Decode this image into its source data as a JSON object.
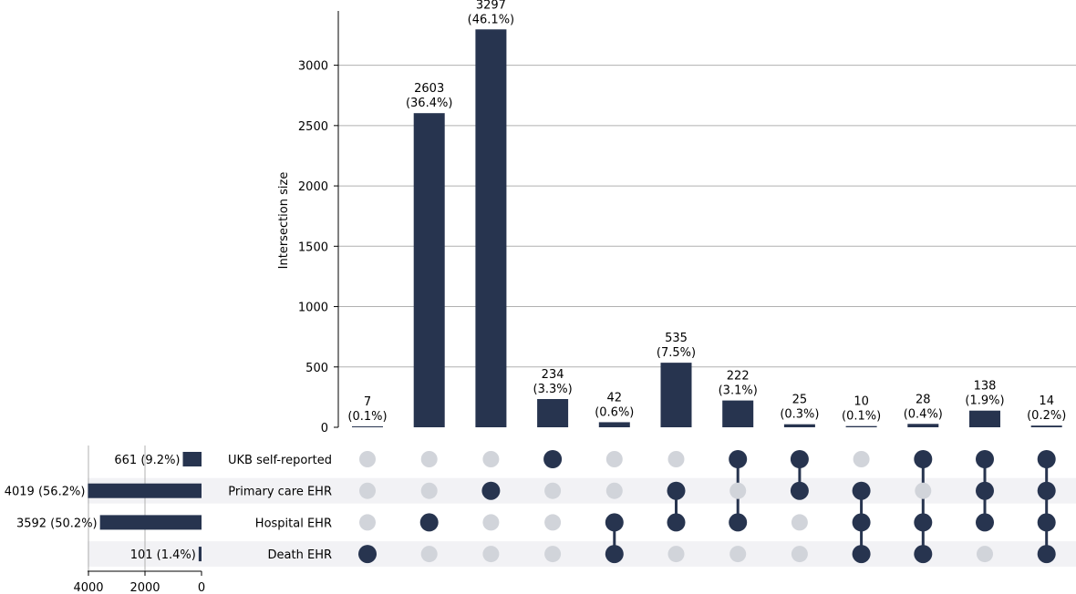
{
  "chart_data": {
    "type": "upset",
    "ylabel": "Intersection size",
    "ylim": [
      0,
      3450
    ],
    "yticks": [
      0,
      500,
      1000,
      1500,
      2000,
      2500,
      3000
    ],
    "grid": true,
    "bar_color": "#27344f",
    "inactive_dot_color": "#d1d4da",
    "stripe_color": "#f2f2f5",
    "sets": [
      {
        "name": "UKB self-reported",
        "size": 661,
        "label": "661 (9.2%)"
      },
      {
        "name": "Primary care EHR",
        "size": 4019,
        "label": "4019 (56.2%)"
      },
      {
        "name": "Hospital EHR",
        "size": 3592,
        "label": "3592 (50.2%)"
      },
      {
        "name": "Death EHR",
        "size": 101,
        "label": "101 (1.4%)"
      }
    ],
    "set_size_axis": {
      "xlim": [
        0,
        4000
      ],
      "ticks": [
        4000,
        2000,
        0
      ]
    },
    "intersections": [
      {
        "members": [
          3
        ],
        "value": 7,
        "count": "7",
        "pct": "(0.1%)"
      },
      {
        "members": [
          2
        ],
        "value": 2603,
        "count": "2603",
        "pct": "(36.4%)"
      },
      {
        "members": [
          1
        ],
        "value": 3297,
        "count": "3297",
        "pct": "(46.1%)"
      },
      {
        "members": [
          0
        ],
        "value": 234,
        "count": "234",
        "pct": "(3.3%)"
      },
      {
        "members": [
          2,
          3
        ],
        "value": 42,
        "count": "42",
        "pct": "(0.6%)"
      },
      {
        "members": [
          1,
          2
        ],
        "value": 535,
        "count": "535",
        "pct": "(7.5%)"
      },
      {
        "members": [
          0,
          2
        ],
        "value": 222,
        "count": "222",
        "pct": "(3.1%)"
      },
      {
        "members": [
          0,
          1
        ],
        "value": 25,
        "count": "25",
        "pct": "(0.3%)"
      },
      {
        "members": [
          1,
          2,
          3
        ],
        "value": 10,
        "count": "10",
        "pct": "(0.1%)"
      },
      {
        "members": [
          0,
          2,
          3
        ],
        "value": 28,
        "count": "28",
        "pct": "(0.4%)"
      },
      {
        "members": [
          0,
          1,
          2
        ],
        "value": 138,
        "count": "138",
        "pct": "(1.9%)"
      },
      {
        "members": [
          0,
          1,
          2,
          3
        ],
        "value": 14,
        "count": "14",
        "pct": "(0.2%)"
      }
    ]
  }
}
